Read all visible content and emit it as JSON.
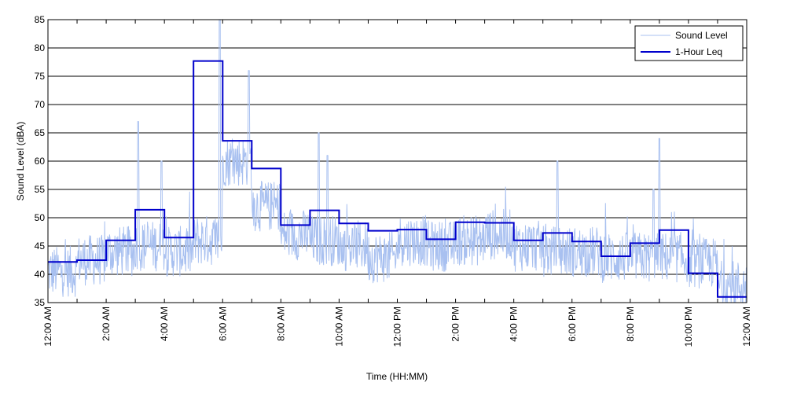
{
  "chart_data": {
    "type": "line",
    "title": "",
    "xlabel": "Time (HH:MM)",
    "ylabel": "Sound Level (dBA)",
    "xlim": [
      0,
      24
    ],
    "ylim": [
      35,
      85
    ],
    "grid": "horizontal",
    "legend_position": "top-right",
    "y_ticks": [
      35,
      40,
      45,
      50,
      55,
      60,
      65,
      70,
      75,
      80,
      85
    ],
    "x_ticks": [
      {
        "hour": 0,
        "label": "12:00 AM"
      },
      {
        "hour": 2,
        "label": "2:00 AM"
      },
      {
        "hour": 4,
        "label": "4:00 AM"
      },
      {
        "hour": 6,
        "label": "6:00 AM"
      },
      {
        "hour": 8,
        "label": "8:00 AM"
      },
      {
        "hour": 10,
        "label": "10:00 AM"
      },
      {
        "hour": 12,
        "label": "12:00 PM"
      },
      {
        "hour": 14,
        "label": "2:00 PM"
      },
      {
        "hour": 16,
        "label": "4:00 PM"
      },
      {
        "hour": 18,
        "label": "6:00 PM"
      },
      {
        "hour": 20,
        "label": "8:00 PM"
      },
      {
        "hour": 22,
        "label": "10:00 PM"
      },
      {
        "hour": 24,
        "label": "12:00 AM"
      }
    ],
    "series": [
      {
        "name": "Sound Level",
        "color": "#a8c0f0",
        "style": "thin-noisy-line",
        "hourly_mean": [
          40.5,
          42.5,
          44,
          45,
          44,
          46,
          60,
          52,
          47,
          46,
          45,
          43,
          46,
          45,
          46,
          47,
          45,
          44,
          44,
          43,
          43,
          43,
          42,
          38
        ],
        "peaks": [
          {
            "x": 3.1,
            "y": 67
          },
          {
            "x": 3.9,
            "y": 60
          },
          {
            "x": 5.9,
            "y": 85
          },
          {
            "x": 6.9,
            "y": 76
          },
          {
            "x": 9.3,
            "y": 65
          },
          {
            "x": 9.6,
            "y": 61
          },
          {
            "x": 17.5,
            "y": 60
          },
          {
            "x": 20.8,
            "y": 55
          },
          {
            "x": 21.0,
            "y": 64
          }
        ]
      },
      {
        "name": "1-Hour Leq",
        "color": "#0000cc",
        "style": "step",
        "x": [
          0,
          1,
          2,
          3,
          4,
          5,
          6,
          7,
          8,
          9,
          10,
          11,
          12,
          13,
          14,
          15,
          16,
          17,
          18,
          19,
          20,
          21,
          22,
          23
        ],
        "values": [
          42.2,
          42.5,
          46.0,
          51.4,
          46.5,
          77.7,
          63.6,
          58.7,
          48.7,
          51.3,
          49.0,
          47.7,
          47.9,
          46.2,
          49.2,
          49.1,
          46.0,
          47.3,
          45.8,
          43.2,
          45.5,
          47.8,
          40.2,
          36.0
        ]
      }
    ]
  }
}
